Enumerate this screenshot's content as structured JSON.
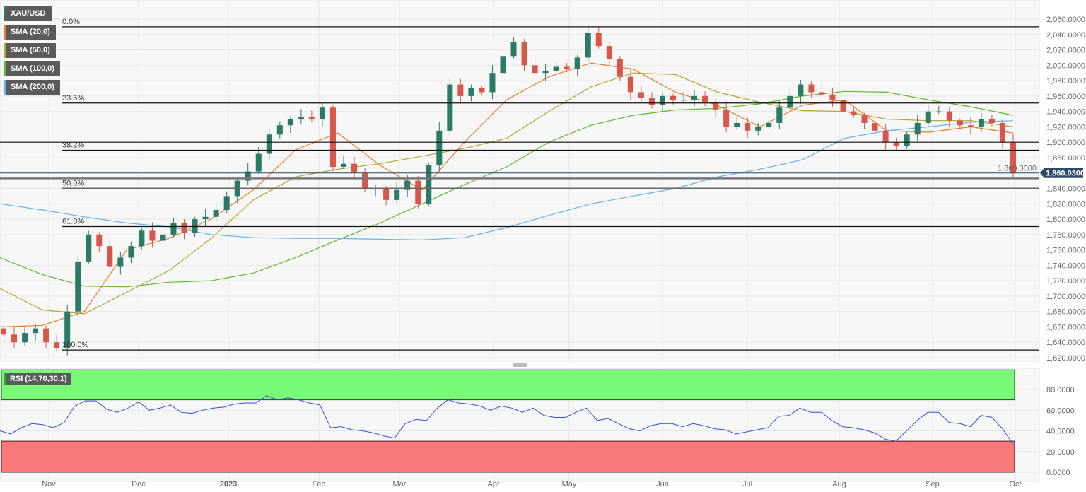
{
  "legend": [
    {
      "label": "XAU/USD",
      "color": "#2b7a66"
    },
    {
      "label": "SMA (20,0)",
      "color": "#f07b26"
    },
    {
      "label": "SMA (50,0)",
      "color": "#b4a62e"
    },
    {
      "label": "SMA (100,0)",
      "color": "#5dbb2a"
    },
    {
      "label": "SMA (200,0)",
      "color": "#5fb5f0"
    }
  ],
  "rsi_legend": "RSI (14,70,30,1)",
  "current_price_label": "1,860.0300",
  "colors": {
    "up": "#2b7a66",
    "down": "#d9574a",
    "rsi_line": "#3050e0",
    "overbought_zone": "#78fa78",
    "oversold_zone": "#fa7878",
    "price_tag": "#2e4a6b"
  },
  "chart_data": [
    {
      "type": "candlestick",
      "symbol": "XAU/USD",
      "ylim": [
        1620,
        2060
      ],
      "y_ticks": [
        "2,060.0000",
        "2,040.0000",
        "2,020.0000",
        "2,000.0000",
        "1,980.0000",
        "1,960.0000",
        "1,940.0000",
        "1,920.0000",
        "1,900.0000",
        "1,880.0000",
        "1,860.0000",
        "1,840.0000",
        "1,820.0000",
        "1,800.0000",
        "1,780.0000",
        "1,760.0000",
        "1,740.0000",
        "1,720.0000",
        "1,700.0000",
        "1,680.0000",
        "1,660.0000",
        "1,640.0000",
        "1,620.0000"
      ],
      "x_ticks": [
        "Nov",
        "Dec",
        "2023",
        "Feb",
        "Mar",
        "Apr",
        "May",
        "Jun",
        "Jul",
        "Aug",
        "Sep",
        "Oct"
      ],
      "grid": true,
      "closes": [
        1650,
        1640,
        1652,
        1658,
        1640,
        1632,
        1680,
        1745,
        1780,
        1765,
        1738,
        1750,
        1765,
        1785,
        1772,
        1780,
        1795,
        1782,
        1800,
        1803,
        1812,
        1830,
        1850,
        1862,
        1885,
        1910,
        1922,
        1930,
        1933,
        1930,
        1945,
        1868,
        1872,
        1860,
        1840,
        1840,
        1825,
        1838,
        1850,
        1820,
        1870,
        1915,
        1975,
        1960,
        1970,
        1965,
        1990,
        2012,
        2030,
        2000,
        1990,
        1993,
        1998,
        1995,
        2010,
        2042,
        2025,
        2008,
        1985,
        1965,
        1958,
        1948,
        1960,
        1955,
        1955,
        1960,
        1952,
        1942,
        1920,
        1925,
        1915,
        1920,
        1925,
        1945,
        1960,
        1975,
        1965,
        1962,
        1955,
        1940,
        1935,
        1925,
        1915,
        1900,
        1895,
        1910,
        1925,
        1940,
        1940,
        1928,
        1922,
        1920,
        1930,
        1925,
        1900,
        1860.03
      ],
      "series": [
        {
          "name": "SMA (20,0)",
          "values": [
            1660,
            1662,
            1680,
            1760,
            1775,
            1800,
            1838,
            1890,
            1912,
            1870,
            1838,
            1900,
            1955,
            1985,
            2003,
            1995,
            1965,
            1948,
            1920,
            1948,
            1955,
            1915,
            1913,
            1920,
            1912
          ]
        },
        {
          "name": "SMA (50,0)",
          "values": [
            1710,
            1682,
            1677,
            1705,
            1733,
            1775,
            1825,
            1855,
            1865,
            1872,
            1882,
            1892,
            1905,
            1940,
            1972,
            1990,
            1988,
            1965,
            1952,
            1941,
            1940,
            1930,
            1928,
            1928,
            1920
          ]
        },
        {
          "name": "SMA (100,0)",
          "values": [
            1750,
            1728,
            1713,
            1712,
            1718,
            1720,
            1730,
            1750,
            1773,
            1795,
            1820,
            1845,
            1868,
            1900,
            1922,
            1935,
            1942,
            1944,
            1950,
            1960,
            1966,
            1965,
            1955,
            1946,
            1935
          ]
        },
        {
          "name": "SMA (200,0)",
          "values": [
            1820,
            1812,
            1803,
            1795,
            1790,
            1780,
            1776,
            1775,
            1775,
            1774,
            1773,
            1776,
            1789,
            1805,
            1820,
            1830,
            1840,
            1855,
            1865,
            1877,
            1905,
            1915,
            1920,
            1926,
            1928
          ]
        }
      ],
      "fibonacci": [
        {
          "label": "0.0%",
          "price": 2050
        },
        {
          "label": "23.6%",
          "price": 1950.9
        },
        {
          "label": "38.2%",
          "price": 1889.6
        },
        {
          "label": "50.0%",
          "price": 1840
        },
        {
          "label": "61.8%",
          "price": 1790.4
        },
        {
          "label": "100.0%",
          "price": 1630
        }
      ],
      "horizontal_lines": [
        1900,
        1853
      ],
      "current_price": 1860.03
    },
    {
      "type": "line",
      "name": "RSI (14,70,30,1)",
      "ylim": [
        0,
        100
      ],
      "y_ticks": [
        "80.0000",
        "60.0000",
        "40.0000",
        "20.0000",
        "0.0000"
      ],
      "overbought": 70,
      "oversold": 30,
      "values": [
        40,
        37,
        43,
        47,
        46,
        43,
        48,
        64,
        69,
        69,
        61,
        58,
        62,
        68,
        60,
        62,
        65,
        58,
        57,
        60,
        62,
        63,
        66,
        67,
        67,
        74,
        70,
        72,
        70,
        67,
        65,
        43,
        44,
        41,
        40,
        38,
        35,
        33,
        47,
        51,
        50,
        62,
        70,
        67,
        66,
        64,
        60,
        64,
        62,
        58,
        62,
        55,
        53,
        53,
        58,
        62,
        50,
        52,
        47,
        42,
        40,
        45,
        47,
        47,
        44,
        47,
        45,
        42,
        41,
        37,
        39,
        41,
        43,
        54,
        55,
        62,
        58,
        58,
        50,
        44,
        43,
        41,
        38,
        32,
        30,
        40,
        50,
        58,
        58,
        48,
        47,
        44,
        55,
        53,
        42,
        27
      ]
    }
  ]
}
